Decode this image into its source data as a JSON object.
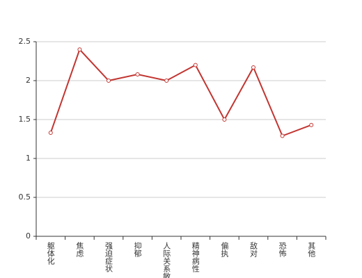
{
  "chart_data": {
    "type": "line",
    "categories": [
      "躯体化",
      "焦虑",
      "强迫症状",
      "抑郁",
      "人际关系敏感",
      "精神病性",
      "偏执",
      "敌对",
      "恐怖",
      "其他"
    ],
    "values": [
      1.33,
      2.4,
      2.0,
      2.08,
      2.0,
      2.2,
      1.5,
      2.17,
      1.29,
      1.43
    ],
    "color": "#c23531",
    "ylim": [
      0,
      2.5
    ],
    "yticks": [
      0,
      0.5,
      1,
      1.5,
      2,
      2.5
    ],
    "grid": true
  }
}
